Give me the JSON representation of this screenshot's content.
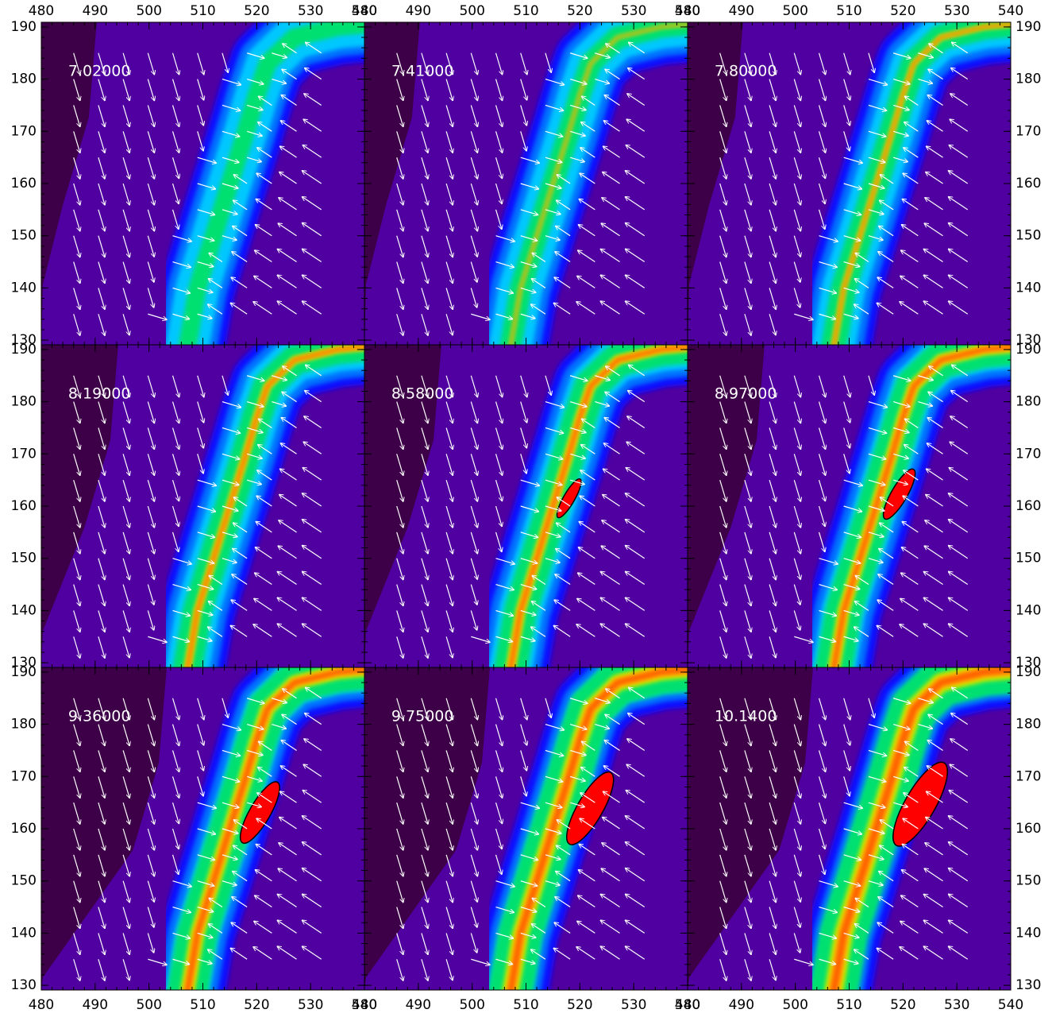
{
  "chart_data": [
    {
      "type": "vector_field",
      "title": "7.02000",
      "xlim": [
        480,
        540
      ],
      "ylim": [
        129.1,
        190.9
      ],
      "xticks": [
        480,
        490,
        500,
        510,
        520,
        530,
        540
      ],
      "yticks": [
        130,
        140,
        150,
        160,
        170,
        180,
        190
      ]
    },
    {
      "type": "vector_field",
      "title": "7.41000",
      "xlim": [
        480,
        540
      ],
      "ylim": [
        129.1,
        190.9
      ],
      "xticks": [
        480,
        490,
        500,
        510,
        520,
        530,
        540
      ],
      "yticks": [
        130,
        140,
        150,
        160,
        170,
        180,
        190
      ]
    },
    {
      "type": "vector_field",
      "title": "7.80000",
      "xlim": [
        480,
        540
      ],
      "ylim": [
        129.1,
        190.9
      ],
      "xticks": [
        480,
        490,
        500,
        510,
        520,
        530,
        540
      ],
      "yticks": [
        130,
        140,
        150,
        160,
        170,
        180,
        190
      ]
    },
    {
      "type": "vector_field",
      "title": "8.19000",
      "xlim": [
        480,
        540
      ],
      "ylim": [
        129.1,
        190.9
      ],
      "xticks": [
        480,
        490,
        500,
        510,
        520,
        530,
        540
      ],
      "yticks": [
        130,
        140,
        150,
        160,
        170,
        180,
        190
      ]
    },
    {
      "type": "vector_field",
      "title": "8.58000",
      "xlim": [
        480,
        540
      ],
      "ylim": [
        129.1,
        190.9
      ],
      "xticks": [
        480,
        490,
        500,
        510,
        520,
        530,
        540
      ],
      "yticks": [
        130,
        140,
        150,
        160,
        170,
        180,
        190
      ]
    },
    {
      "type": "vector_field",
      "title": "8.97000",
      "xlim": [
        480,
        540
      ],
      "ylim": [
        129.1,
        190.9
      ],
      "xticks": [
        480,
        490,
        500,
        510,
        520,
        530,
        540
      ],
      "yticks": [
        130,
        140,
        150,
        160,
        170,
        180,
        190
      ]
    },
    {
      "type": "vector_field",
      "title": "9.36000",
      "xlim": [
        480,
        540
      ],
      "ylim": [
        129.1,
        190.9
      ],
      "xticks": [
        480,
        490,
        500,
        510,
        520,
        530,
        540
      ],
      "yticks": [
        130,
        140,
        150,
        160,
        170,
        180,
        190
      ]
    },
    {
      "type": "vector_field",
      "title": "9.75000",
      "xlim": [
        480,
        540
      ],
      "ylim": [
        129.1,
        190.9
      ],
      "xticks": [
        480,
        490,
        500,
        510,
        520,
        530,
        540
      ],
      "yticks": [
        130,
        140,
        150,
        160,
        170,
        180,
        190
      ]
    },
    {
      "type": "vector_field",
      "title": "10.1400",
      "xlim": [
        480,
        540
      ],
      "ylim": [
        129.1,
        190.9
      ],
      "xticks": [
        480,
        490,
        500,
        510,
        520,
        530,
        540
      ],
      "yticks": [
        130,
        140,
        150,
        160,
        170,
        180,
        190
      ]
    }
  ]
}
